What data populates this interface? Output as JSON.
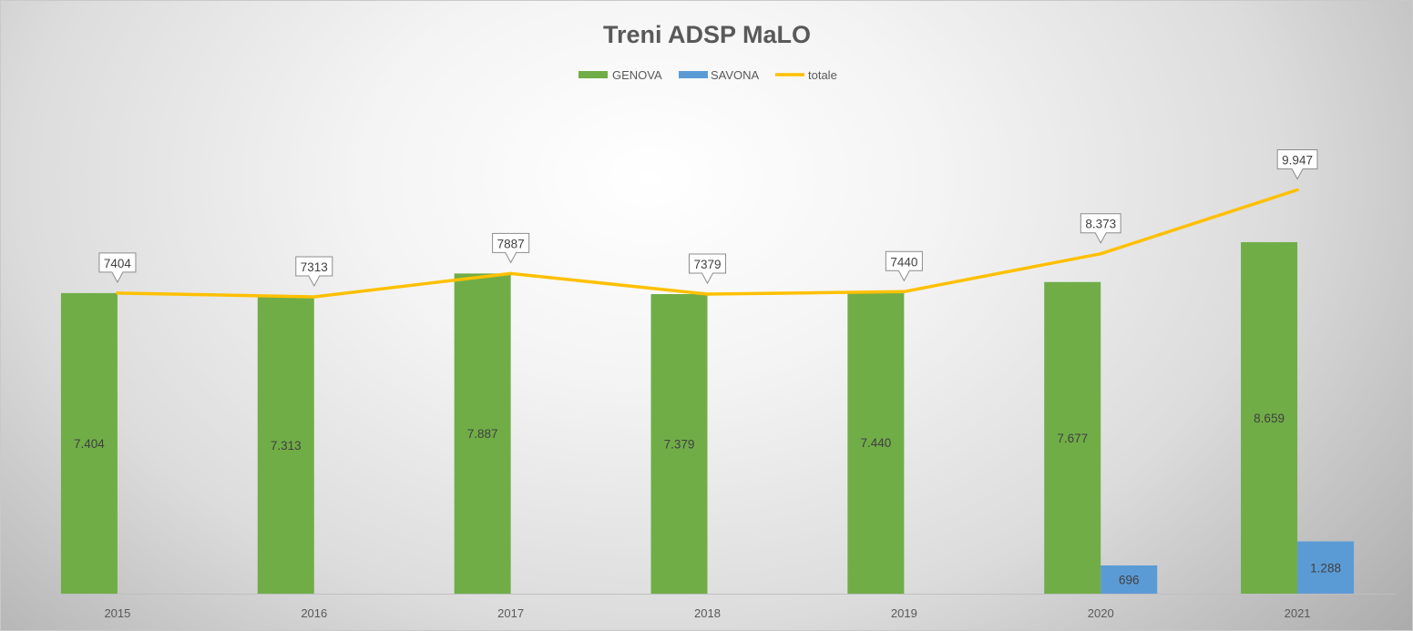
{
  "chart_data": {
    "type": "bar",
    "title": "Treni ADSP MaLO",
    "xlabel": "",
    "ylabel": "",
    "categories": [
      "2015",
      "2016",
      "2017",
      "2018",
      "2019",
      "2020",
      "2021"
    ],
    "ylim": [
      0,
      12000
    ],
    "grid": false,
    "legend": "top",
    "series": [
      {
        "name": "GENOVA",
        "type": "bar",
        "color": "#70AD47",
        "values": [
          7404,
          7313,
          7887,
          7379,
          7440,
          7677,
          8659
        ],
        "labels": [
          "7.404",
          "7.313",
          "7.887",
          "7.379",
          "7.440",
          "7.677",
          "8.659"
        ]
      },
      {
        "name": "SAVONA",
        "type": "bar",
        "color": "#5B9BD5",
        "values": [
          null,
          null,
          null,
          null,
          null,
          696,
          1288
        ],
        "labels": [
          null,
          null,
          null,
          null,
          null,
          "696",
          "1.288"
        ]
      },
      {
        "name": "totale",
        "type": "line",
        "color": "#FFC000",
        "values": [
          7404,
          7313,
          7887,
          7379,
          7440,
          8373,
          9947
        ],
        "labels": [
          "7404",
          "7313",
          "7887",
          "7379",
          "7440",
          "8.373",
          "9.947"
        ]
      }
    ]
  }
}
